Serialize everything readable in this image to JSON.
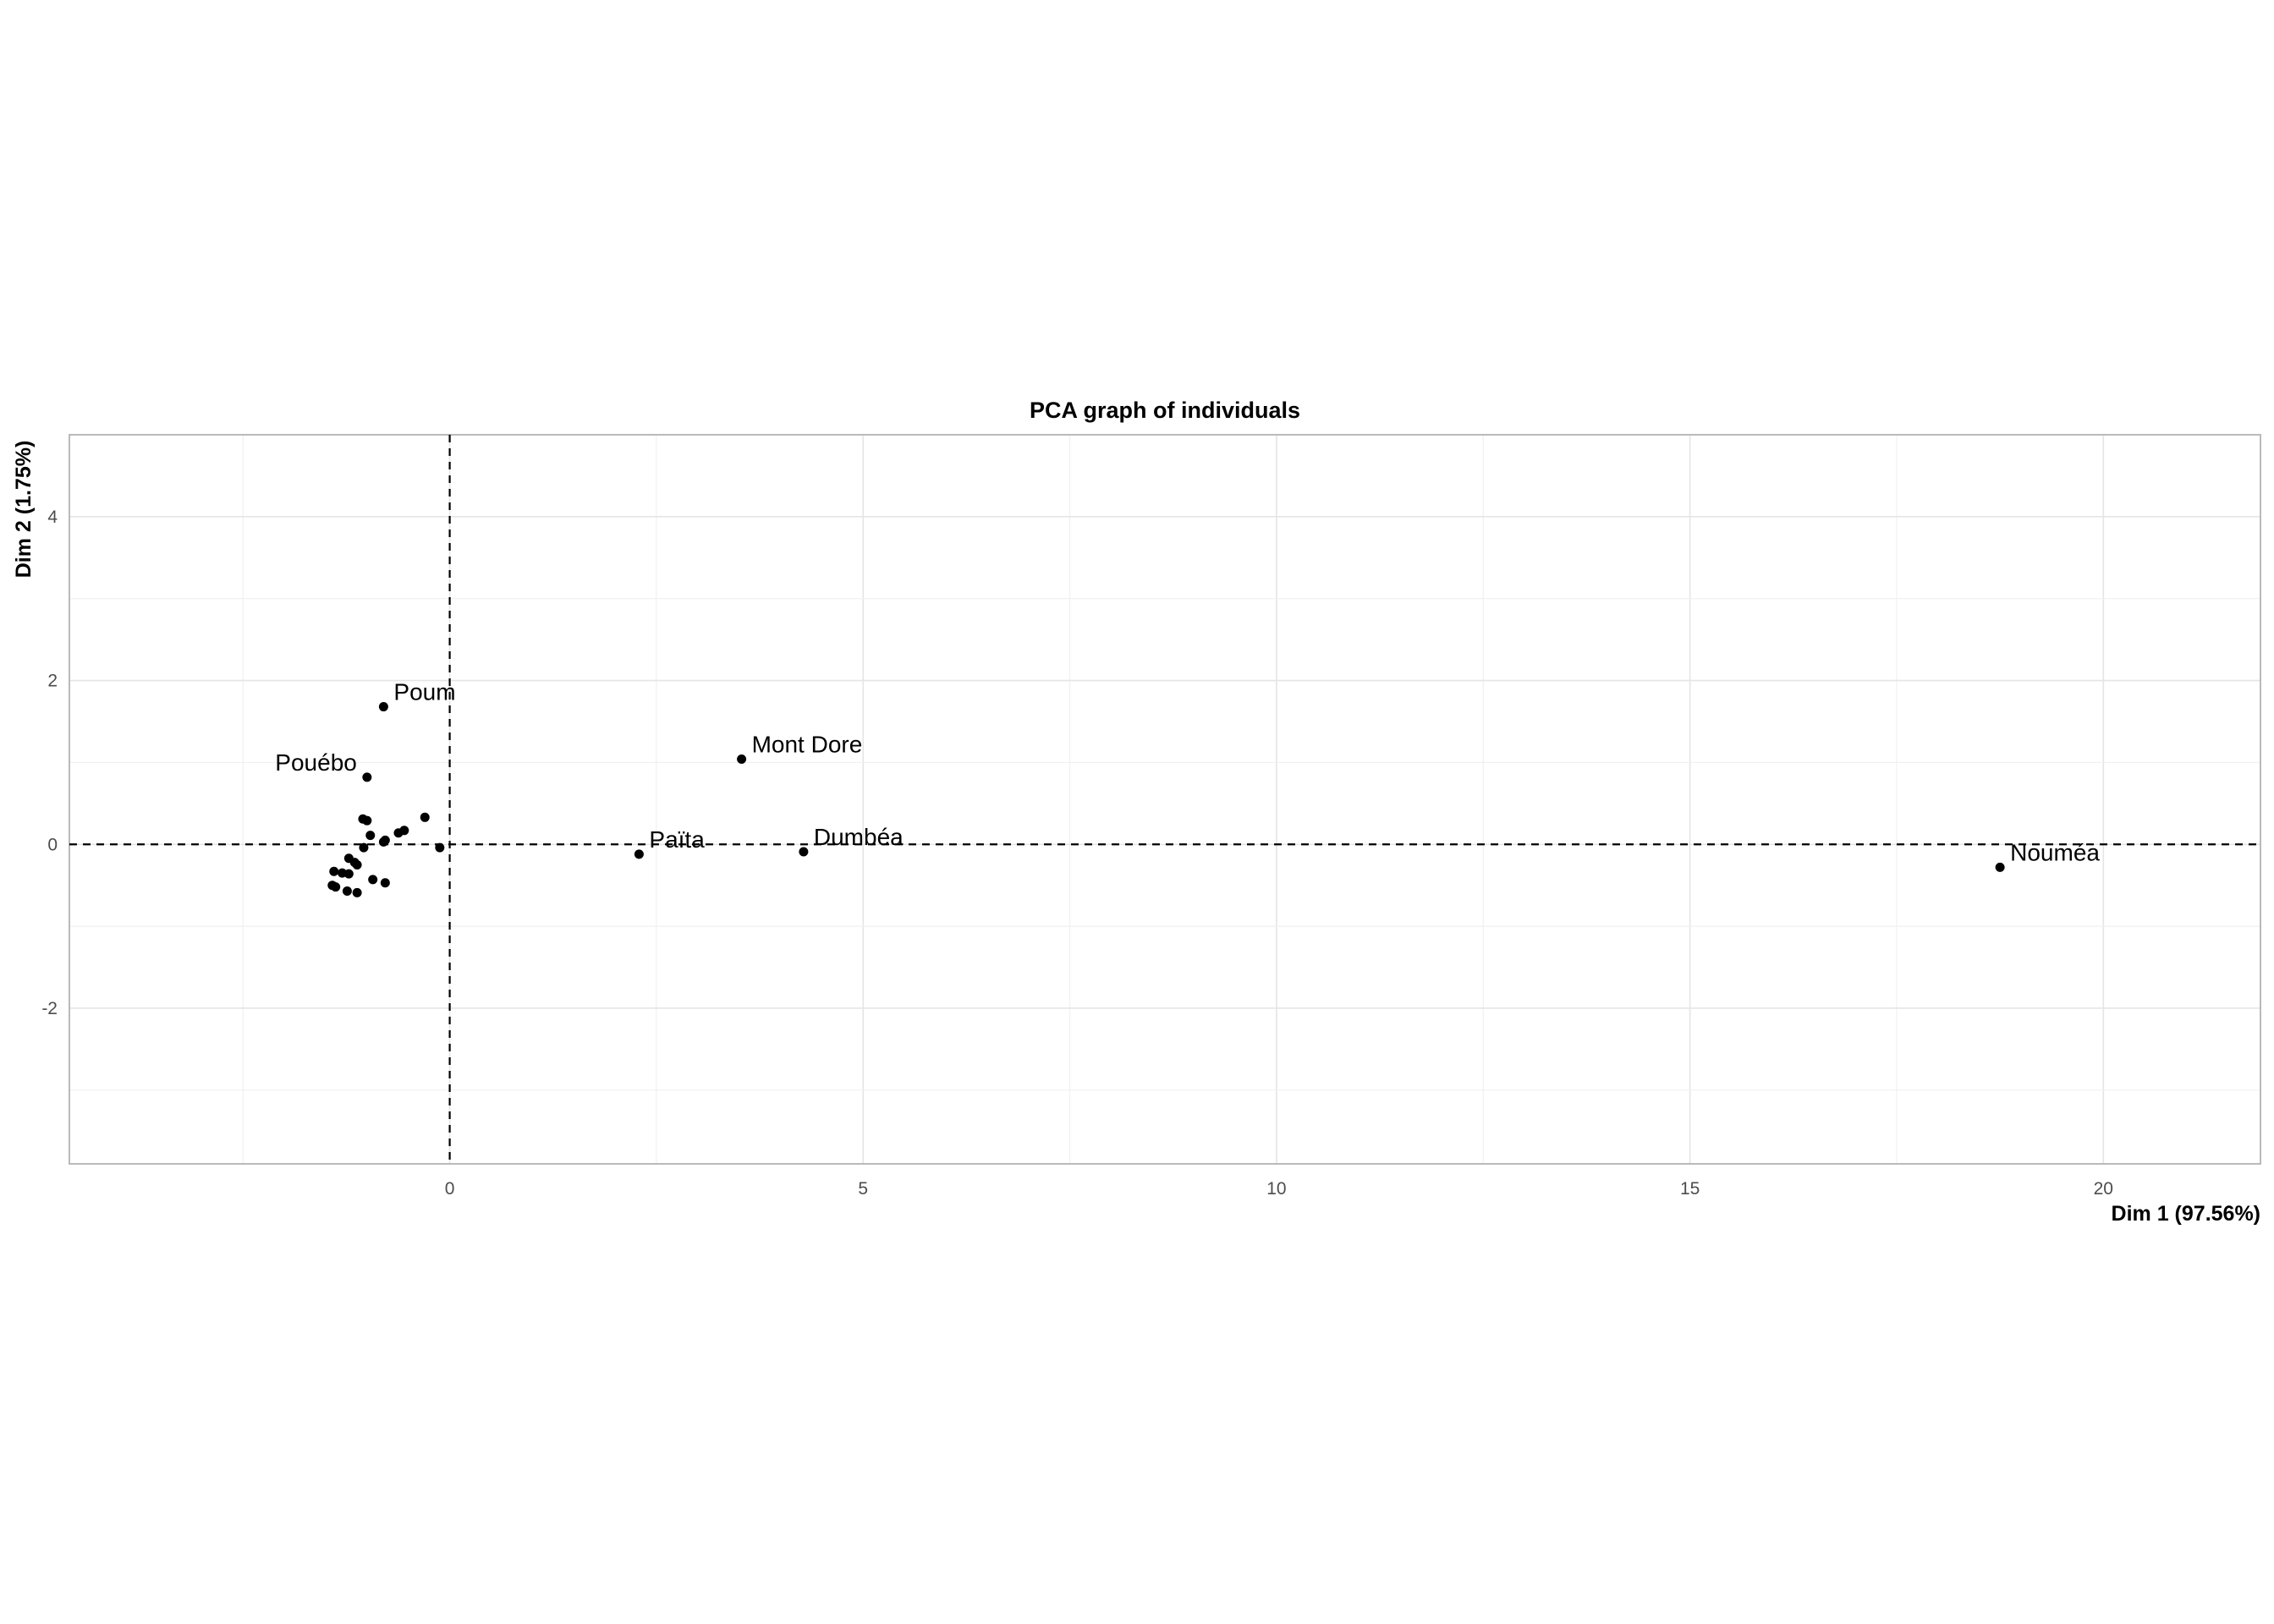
{
  "chart_data": {
    "type": "scatter",
    "title": "PCA graph of individuals",
    "xlabel": "Dim 1 (97.56%)",
    "ylabel": "Dim 2 (1.75%)",
    "xlim": [
      -4.6,
      21.9
    ],
    "ylim": [
      -3.9,
      5.0
    ],
    "x_ticks": [
      0,
      5,
      10,
      15,
      20
    ],
    "y_ticks": [
      -2,
      0,
      2,
      4
    ],
    "x_tick_labels": [
      "0",
      "5",
      "10",
      "15",
      "20"
    ],
    "y_tick_labels": [
      "-2",
      "0",
      "2",
      "4"
    ],
    "grid": true,
    "reference_lines": {
      "x": 0,
      "y": 0,
      "style": "dashed"
    },
    "points": [
      {
        "x": 18.75,
        "y": -0.28,
        "label": "Nouméa"
      },
      {
        "x": 4.28,
        "y": -0.09,
        "label": "Dumbéa"
      },
      {
        "x": 3.53,
        "y": 1.04,
        "label": "Mont Dore"
      },
      {
        "x": 2.29,
        "y": -0.12,
        "label": "Païta"
      },
      {
        "x": -0.8,
        "y": 1.68,
        "label": "Poum"
      },
      {
        "x": -1.0,
        "y": 0.82,
        "label": "Pouébo"
      },
      {
        "x": -0.3,
        "y": 0.33,
        "label": ""
      },
      {
        "x": -0.12,
        "y": -0.04,
        "label": ""
      },
      {
        "x": -0.55,
        "y": 0.17,
        "label": ""
      },
      {
        "x": -0.62,
        "y": 0.14,
        "label": ""
      },
      {
        "x": -0.78,
        "y": 0.05,
        "label": ""
      },
      {
        "x": -0.8,
        "y": 0.03,
        "label": ""
      },
      {
        "x": -0.96,
        "y": 0.11,
        "label": ""
      },
      {
        "x": -1.05,
        "y": 0.31,
        "label": ""
      },
      {
        "x": -1.0,
        "y": 0.29,
        "label": ""
      },
      {
        "x": -1.04,
        "y": -0.04,
        "label": ""
      },
      {
        "x": -1.22,
        "y": -0.17,
        "label": ""
      },
      {
        "x": -1.15,
        "y": -0.22,
        "label": ""
      },
      {
        "x": -1.12,
        "y": -0.25,
        "label": ""
      },
      {
        "x": -1.4,
        "y": -0.33,
        "label": ""
      },
      {
        "x": -1.3,
        "y": -0.35,
        "label": ""
      },
      {
        "x": -1.22,
        "y": -0.36,
        "label": ""
      },
      {
        "x": -0.93,
        "y": -0.43,
        "label": ""
      },
      {
        "x": -0.78,
        "y": -0.47,
        "label": ""
      },
      {
        "x": -1.42,
        "y": -0.5,
        "label": ""
      },
      {
        "x": -1.38,
        "y": -0.52,
        "label": ""
      },
      {
        "x": -1.24,
        "y": -0.57,
        "label": ""
      },
      {
        "x": -1.12,
        "y": -0.59,
        "label": ""
      }
    ]
  }
}
